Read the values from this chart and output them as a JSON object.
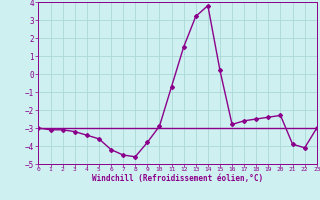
{
  "x": [
    0,
    1,
    2,
    3,
    4,
    5,
    6,
    7,
    8,
    9,
    10,
    11,
    12,
    13,
    14,
    15,
    16,
    17,
    18,
    19,
    20,
    21,
    22,
    23
  ],
  "y_line1": [
    -3.0,
    -3.1,
    -3.1,
    -3.2,
    -3.4,
    -3.6,
    -4.2,
    -4.5,
    -4.6,
    -3.8,
    -2.9,
    -0.7,
    1.5,
    3.2,
    3.8,
    0.2,
    -2.8,
    -2.6,
    -2.5,
    -2.4,
    -2.3,
    -3.9,
    -4.1,
    -3.0
  ],
  "y_line2": [
    -3.0,
    -3.0,
    -3.0,
    -3.0,
    -3.0,
    -3.0,
    -3.0,
    -3.0,
    -3.0,
    -3.0,
    -3.0,
    -3.0,
    -3.0,
    -3.0,
    -3.0,
    -3.0,
    -3.0,
    -3.0,
    -3.0,
    -3.0,
    -3.0,
    -3.0,
    -3.0,
    -3.0
  ],
  "xlim": [
    0,
    23
  ],
  "ylim": [
    -5,
    4
  ],
  "yticks": [
    -5,
    -4,
    -3,
    -2,
    -1,
    0,
    1,
    2,
    3,
    4
  ],
  "xticks": [
    0,
    1,
    2,
    3,
    4,
    5,
    6,
    7,
    8,
    9,
    10,
    11,
    12,
    13,
    14,
    15,
    16,
    17,
    18,
    19,
    20,
    21,
    22,
    23
  ],
  "xlabel": "Windchill (Refroidissement éolien,°C)",
  "line_color": "#8B008B",
  "bg_color": "#cff0f0",
  "grid_color": "#aad8d8",
  "marker": "D",
  "markersize": 2.0,
  "linewidth": 1.0
}
